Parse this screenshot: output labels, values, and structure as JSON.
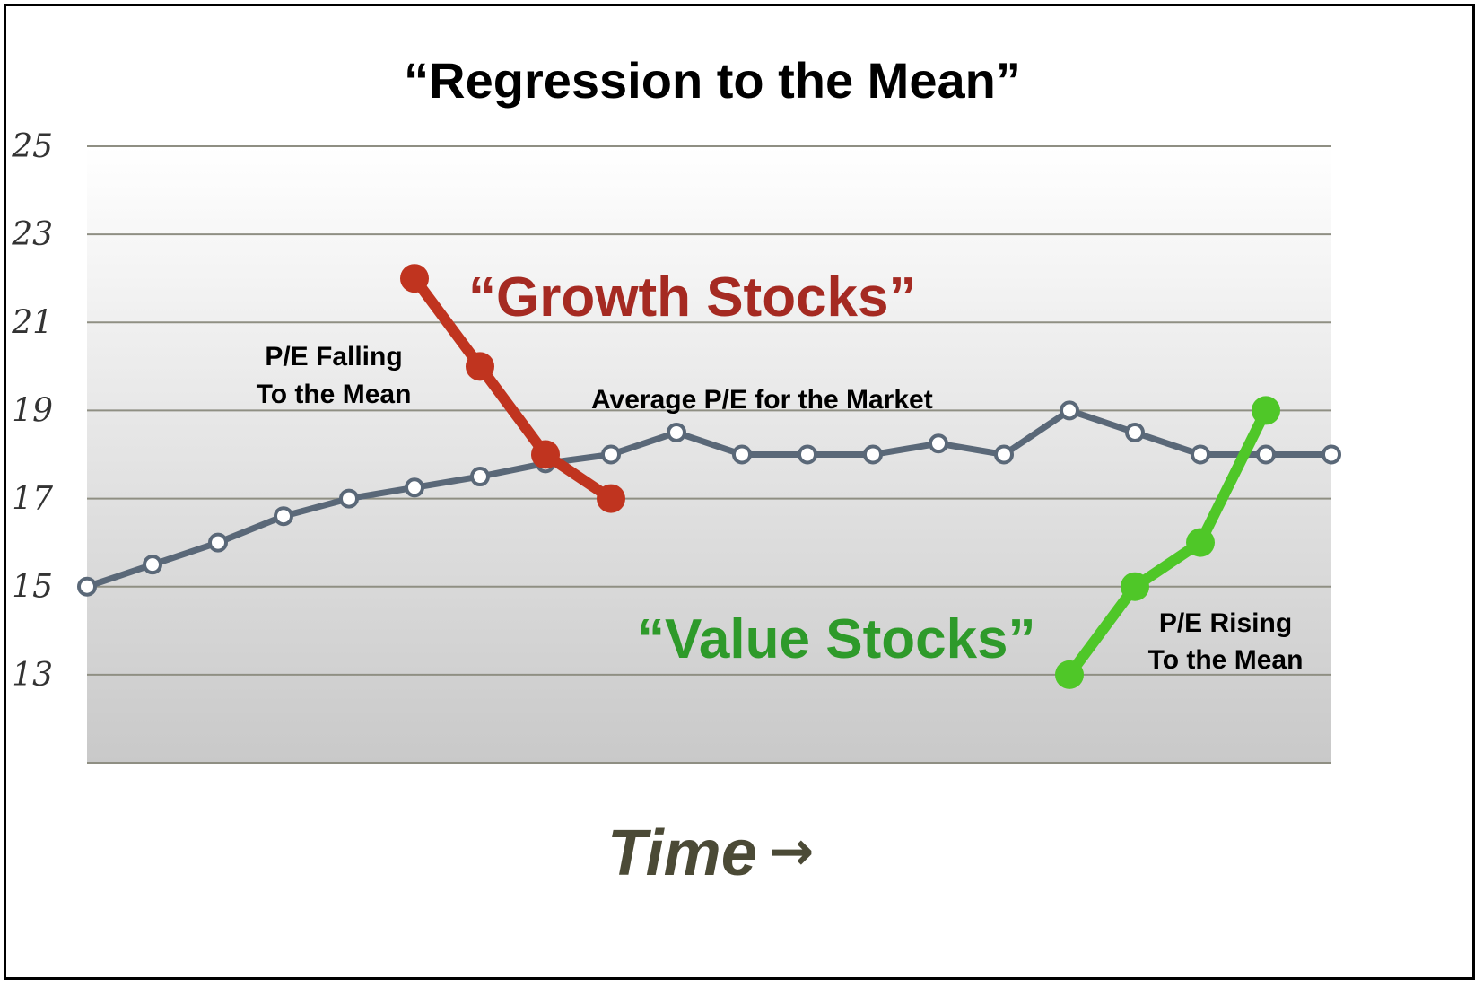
{
  "chart_data": {
    "type": "line",
    "title": "“Regression to the Mean”",
    "xlabel": "Time",
    "xlabel_arrow": "→",
    "ylabel": "",
    "ylim": [
      11,
      25
    ],
    "yticks": [
      25,
      23,
      21,
      19,
      17,
      15,
      13
    ],
    "x_count": 20,
    "grid": true,
    "series": [
      {
        "name": "Average P/E for the Market",
        "color": "#5a6878",
        "marker": "open-circle",
        "x": [
          0,
          1,
          2,
          3,
          4,
          5,
          6,
          7,
          8,
          9,
          10,
          11,
          12,
          13,
          14,
          15,
          16,
          17,
          18,
          19
        ],
        "values": [
          15,
          15.5,
          16,
          16.6,
          17,
          17.25,
          17.5,
          17.8,
          18,
          18.5,
          18,
          18,
          18,
          18.25,
          18,
          19,
          18.5,
          18,
          18,
          18
        ]
      },
      {
        "name": "“Growth Stocks”",
        "color": "#c0341f",
        "marker": "filled-circle",
        "x": [
          5,
          6,
          7,
          8
        ],
        "values": [
          22,
          20,
          18,
          17
        ]
      },
      {
        "name": "“Value Stocks”",
        "color": "#4fc728",
        "marker": "filled-circle",
        "x": [
          15,
          16,
          17,
          18
        ],
        "values": [
          13,
          15,
          16,
          19
        ]
      }
    ],
    "annotations": {
      "falling_line1": "P/E Falling",
      "falling_line2": "To the Mean",
      "rising_line1": "P/E Rising",
      "rising_line2": "To the Mean"
    }
  }
}
